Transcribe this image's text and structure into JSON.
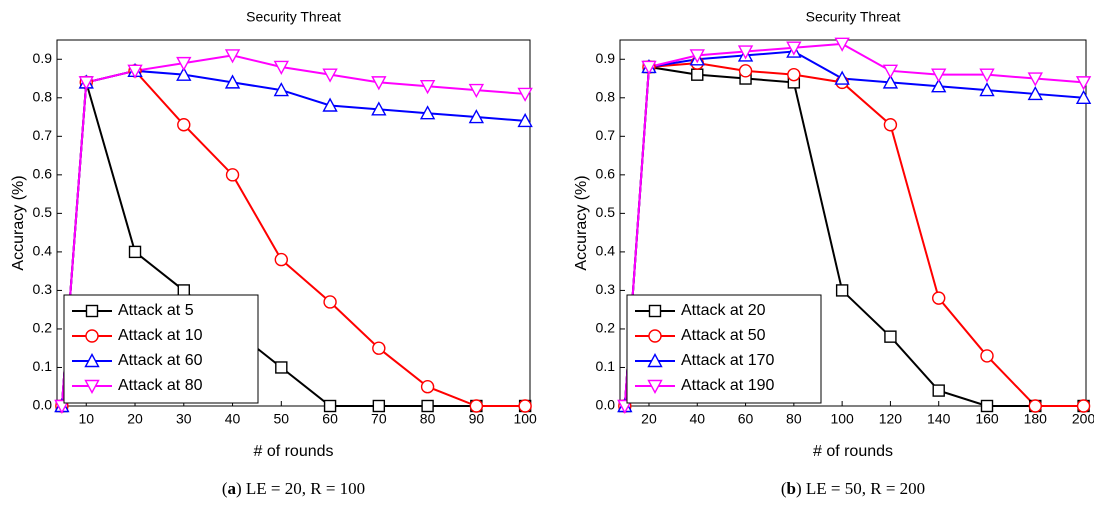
{
  "chart_data": [
    {
      "type": "line",
      "title": "Security Threat",
      "x_label": "# of rounds",
      "y_label": "Accuracy (%)",
      "caption": [
        "(",
        "a",
        ") LE = 20, R = 100"
      ],
      "x": [
        5,
        10,
        20,
        30,
        40,
        50,
        60,
        70,
        80,
        90,
        100
      ],
      "xlim": [
        4,
        101
      ],
      "xticks": [
        10,
        20,
        30,
        40,
        50,
        60,
        70,
        80,
        90,
        100
      ],
      "ylim": [
        0,
        0.95
      ],
      "yticks": [
        {
          "value": 0,
          "label": "0.0"
        },
        0.1,
        0.2,
        0.3,
        0.4,
        0.5,
        0.6,
        0.7,
        0.8,
        0.9
      ],
      "legend": "lower left",
      "series": [
        {
          "name": "Attack at 5",
          "color": "#000000",
          "marker": "square",
          "values": [
            0,
            0.84,
            0.4,
            0.3,
            0.2,
            0.1,
            0,
            0,
            0,
            0,
            0
          ]
        },
        {
          "name": "Attack at 10",
          "color": "#ff0000",
          "marker": "circle",
          "values": [
            0,
            0.84,
            0.87,
            0.73,
            0.6,
            0.38,
            0.27,
            0.15,
            0.05,
            0,
            0
          ]
        },
        {
          "name": "Attack at 60",
          "color": "#0000ff",
          "marker": "triangle-up",
          "values": [
            0,
            0.84,
            0.87,
            0.86,
            0.84,
            0.82,
            0.78,
            0.77,
            0.76,
            0.75,
            0.74
          ]
        },
        {
          "name": "Attack at 80",
          "color": "#ff00ff",
          "marker": "triangle-down",
          "values": [
            0,
            0.84,
            0.87,
            0.89,
            0.91,
            0.88,
            0.86,
            0.84,
            0.83,
            0.82,
            0.81
          ]
        }
      ]
    },
    {
      "type": "line",
      "title": "Security Threat",
      "x_label": "# of rounds",
      "y_label": "Accuracy (%)",
      "caption": [
        "(",
        "b",
        ") LE = 50, R = 200"
      ],
      "x": [
        10,
        20,
        40,
        60,
        80,
        100,
        120,
        140,
        160,
        180,
        200
      ],
      "xlim": [
        8,
        201
      ],
      "xticks": [
        20,
        40,
        60,
        80,
        100,
        120,
        140,
        160,
        180,
        200
      ],
      "ylim": [
        0,
        0.95
      ],
      "yticks": [
        {
          "value": 0,
          "label": "0.0"
        },
        0.1,
        0.2,
        0.3,
        0.4,
        0.5,
        0.6,
        0.7,
        0.8,
        0.9
      ],
      "legend": "lower left",
      "series": [
        {
          "name": "Attack at 20",
          "color": "#000000",
          "marker": "square",
          "values": [
            0,
            0.88,
            0.86,
            0.85,
            0.84,
            0.3,
            0.18,
            0.04,
            0,
            0,
            0
          ]
        },
        {
          "name": "Attack at 50",
          "color": "#ff0000",
          "marker": "circle",
          "values": [
            0,
            0.88,
            0.89,
            0.87,
            0.86,
            0.84,
            0.73,
            0.28,
            0.13,
            0,
            0
          ]
        },
        {
          "name": "Attack at 170",
          "color": "#0000ff",
          "marker": "triangle-up",
          "values": [
            0,
            0.88,
            0.9,
            0.91,
            0.92,
            0.85,
            0.84,
            0.83,
            0.82,
            0.81,
            0.8
          ]
        },
        {
          "name": "Attack at 190",
          "color": "#ff00ff",
          "marker": "triangle-down",
          "values": [
            0,
            0.88,
            0.91,
            0.92,
            0.93,
            0.94,
            0.87,
            0.86,
            0.86,
            0.85,
            0.84
          ]
        }
      ]
    }
  ]
}
